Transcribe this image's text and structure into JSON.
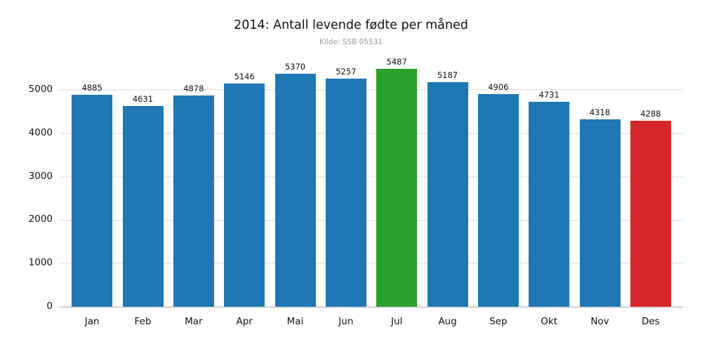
{
  "header": {
    "title": "2014: Antall levende fødte per måned",
    "subtitle": "Kilde: SSB 05531"
  },
  "colors": {
    "bar_default": "#1f77b4",
    "bar_highlight_max": "#2ca02c",
    "bar_highlight_min": "#d62728",
    "gridline": "#ececec",
    "axis_line": "#dcdcdc",
    "subtitle_text": "#999999",
    "label_text": "#111111",
    "background": "#ffffff"
  },
  "chart_data": {
    "type": "bar",
    "title": "2014: Antall levende fødte per måned",
    "subtitle": "Kilde: SSB 05531",
    "categories": [
      "Jan",
      "Feb",
      "Mar",
      "Apr",
      "Mai",
      "Jun",
      "Jul",
      "Aug",
      "Sep",
      "Okt",
      "Nov",
      "Des"
    ],
    "values": [
      4885,
      4631,
      4878,
      5146,
      5370,
      5257,
      5487,
      5187,
      4906,
      4731,
      4318,
      4288
    ],
    "bar_colors": [
      "#1f77b4",
      "#1f77b4",
      "#1f77b4",
      "#1f77b4",
      "#1f77b4",
      "#1f77b4",
      "#2ca02c",
      "#1f77b4",
      "#1f77b4",
      "#1f77b4",
      "#1f77b4",
      "#d62728"
    ],
    "value_labels": [
      4885,
      4631,
      4878,
      5146,
      5370,
      5257,
      5487,
      5187,
      4906,
      4731,
      4318,
      4288
    ],
    "xlabel": "",
    "ylabel": "",
    "ylim": [
      0,
      5700
    ],
    "yticks": [
      0,
      1000,
      2000,
      3000,
      4000,
      5000
    ],
    "grid": "horizontal",
    "legend": "none",
    "annotations": "max month (Jul) highlighted green, min month (Des) highlighted red"
  }
}
